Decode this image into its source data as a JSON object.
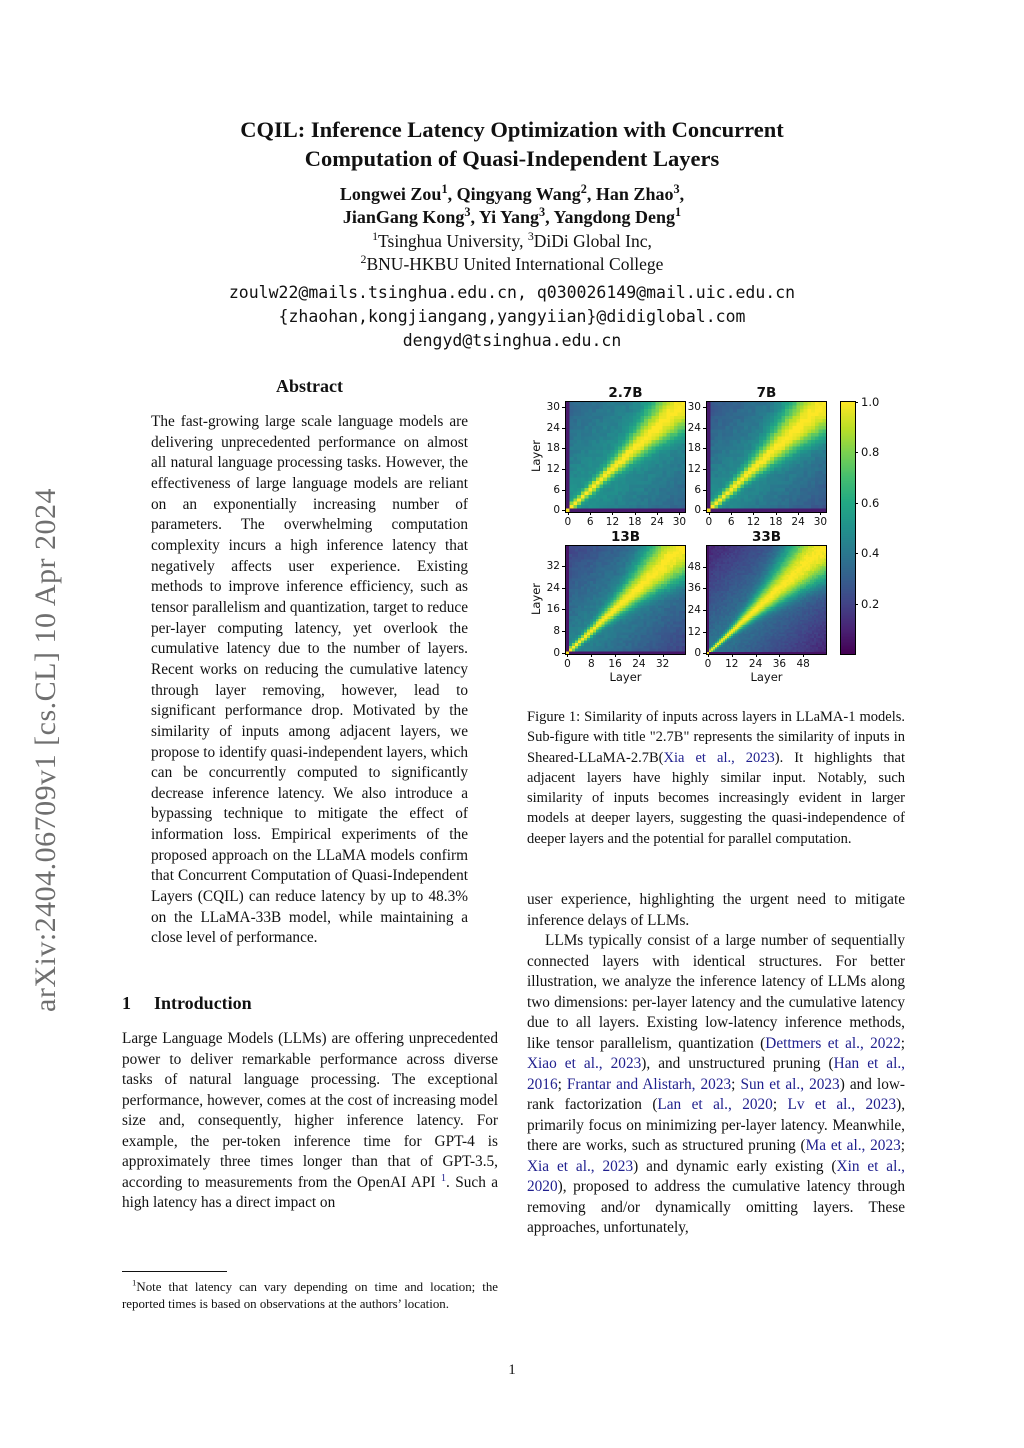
{
  "arxiv_banner": "arXiv:2404.06709v1  [cs.CL]  10 Apr 2024",
  "title": {
    "line1": "CQIL: Inference Latency Optimization with Concurrent",
    "line2": "Computation of Quasi-Independent Layers"
  },
  "authors": {
    "line1": [
      {
        "t": "Longwei Zou"
      },
      {
        "t": "1",
        "s": "sup"
      },
      {
        "t": ", Qingyang Wang"
      },
      {
        "t": "2",
        "s": "sup"
      },
      {
        "t": ", Han Zhao"
      },
      {
        "t": "3",
        "s": "sup"
      },
      {
        "t": ","
      }
    ],
    "line2": [
      {
        "t": "JianGang Kong"
      },
      {
        "t": "3",
        "s": "sup"
      },
      {
        "t": ", Yi Yang"
      },
      {
        "t": "3",
        "s": "sup"
      },
      {
        "t": ", Yangdong Deng"
      },
      {
        "t": "1",
        "s": "sup"
      }
    ]
  },
  "affiliations": {
    "line1": [
      {
        "t": "1",
        "s": "sup"
      },
      {
        "t": "Tsinghua University, "
      },
      {
        "t": "3",
        "s": "sup"
      },
      {
        "t": "DiDi Global Inc,"
      }
    ],
    "line2": [
      {
        "t": "2",
        "s": "sup"
      },
      {
        "t": "BNU-HKBU United International College"
      }
    ]
  },
  "emails": {
    "line1": "zoulw22@mails.tsinghua.edu.cn, q030026149@mail.uic.edu.cn",
    "line2": "{zhaohan,kongjiangang,yangyiian}@didiglobal.com",
    "line3": "dengyd@tsinghua.edu.cn"
  },
  "abstract": {
    "heading": "Abstract",
    "text": "The fast-growing large scale language models are delivering unprecedented performance on almost all natural language processing tasks. However, the effectiveness of large language models are reliant on an exponentially increasing number of parameters. The overwhelming computation complexity incurs a high inference latency that negatively affects user experience. Existing methods to improve inference efficiency, such as tensor parallelism and quantization, target to reduce per-layer computing latency, yet overlook the cumulative latency due to the number of layers. Recent works on reducing the cumulative latency through layer removing, however, lead to significant performance drop. Motivated by the similarity of inputs among adjacent layers, we propose to identify quasi-independent layers, which can be concurrently computed to significantly decrease inference latency. We also introduce a bypassing technique to mitigate the effect of information loss. Empirical experiments of the proposed approach on the LLaMA models confirm that Concurrent Computation of Quasi-Independent Layers (CQIL) can reduce latency by up to 48.3% on the LLaMA-33B model, while maintaining a close level of performance."
  },
  "introduction": {
    "number": "1",
    "heading": "Introduction",
    "paragraph": [
      {
        "t": "Large Language Models (LLMs) are offering unprecedented power to deliver remarkable performance across diverse tasks of natural language processing. The exceptional performance, however, comes at the cost of increasing model size and, consequently, higher inference latency. For example, the per-token inference time for GPT-4 is approximately three times longer than that of GPT-3.5, according to measurements from the OpenAI API "
      },
      {
        "t": "1",
        "s": "supcite"
      },
      {
        "t": ". Such a high latency has a direct impact on"
      }
    ]
  },
  "footnote": [
    {
      "t": "1",
      "s": "sup"
    },
    {
      "t": "Note that latency can vary depending on time and location; the reported times is based on observations at the authors’ location."
    }
  ],
  "figure_caption": [
    {
      "t": "Figure 1: Similarity of inputs across layers in LLaMA-1 models. Sub-figure with title \"2.7B\" represents the similarity of inputs in Sheared-LLaMA-2.7B("
    },
    {
      "t": "Xia et al., 2023",
      "s": "cite"
    },
    {
      "t": "). It highlights that adjacent layers have highly similar input. Notably, such similarity of inputs becomes increasingly evident in larger models at deeper layers, suggesting the quasi-independence of deeper layers and the potential for parallel computation."
    }
  ],
  "right_column": {
    "para1": "user experience, highlighting the urgent need to mitigate inference delays of LLMs.",
    "para2": [
      {
        "t": "LLMs typically consist of a large number of sequentially connected layers with identical structures. For better illustration, we analyze the inference latency of LLMs along two dimensions: per-layer latency and the cumulative latency due to all layers. Existing low-latency inference methods, like tensor parallelism, quantization ("
      },
      {
        "t": "Dettmers et al., 2022",
        "s": "cite"
      },
      {
        "t": "; "
      },
      {
        "t": "Xiao et al., 2023",
        "s": "cite"
      },
      {
        "t": "), and unstructured pruning ("
      },
      {
        "t": "Han et al., 2016",
        "s": "cite"
      },
      {
        "t": "; "
      },
      {
        "t": "Frantar and Alistarh, 2023",
        "s": "cite"
      },
      {
        "t": "; "
      },
      {
        "t": "Sun et al., 2023",
        "s": "cite"
      },
      {
        "t": ") and low-rank factorization ("
      },
      {
        "t": "Lan et al., 2020",
        "s": "cite"
      },
      {
        "t": "; "
      },
      {
        "t": "Lv et al., 2023",
        "s": "cite"
      },
      {
        "t": "), primarily focus on minimizing per-layer latency. Meanwhile, there are works, such as structured pruning ("
      },
      {
        "t": "Ma et al., 2023",
        "s": "cite"
      },
      {
        "t": "; "
      },
      {
        "t": "Xia et al., 2023",
        "s": "cite"
      },
      {
        "t": ") and dynamic early existing ("
      },
      {
        "t": "Xin et al., 2020",
        "s": "cite"
      },
      {
        "t": "), proposed to address the cumulative latency through removing and/or dynamically omitting layers. These approaches, unfortunately,"
      }
    ]
  },
  "page_number": "1",
  "link_color": "#20208e",
  "chart_data": {
    "type": "heatmap",
    "title": "Similarity of inputs across layers in LLaMA-1 models",
    "colormap": "viridis",
    "value_range": [
      0,
      1
    ],
    "diagonal_value": 1.0,
    "colorbar_ticks": [
      "1.0",
      "0.8",
      "0.6",
      "0.4",
      "0.2"
    ],
    "colorbar_tick_values": [
      1.0,
      0.8,
      0.6,
      0.4,
      0.2
    ],
    "legend_position": "right-colorbar",
    "subplots": [
      {
        "title": "2.7B",
        "n_layers": 32,
        "xticks": [
          0,
          6,
          12,
          18,
          24,
          30
        ],
        "yticks": [
          0,
          6,
          12,
          18,
          24,
          30
        ],
        "xlabel": "",
        "ylabel": "Layer",
        "pattern": {
          "bgA": 0.52,
          "bgB": 0.2,
          "sigK": 0.2,
          "sigP": 2.2,
          "edge": 0.07
        }
      },
      {
        "title": "7B",
        "n_layers": 32,
        "xticks": [
          0,
          6,
          12,
          18,
          24,
          30
        ],
        "yticks": [
          0,
          6,
          12,
          18,
          24,
          30
        ],
        "xlabel": "",
        "ylabel": "",
        "pattern": {
          "bgA": 0.5,
          "bgB": 0.24,
          "sigK": 0.23,
          "sigP": 2.0,
          "edge": 0.07
        }
      },
      {
        "title": "13B",
        "n_layers": 40,
        "xticks": [
          0,
          8,
          16,
          24,
          32
        ],
        "yticks": [
          0,
          8,
          16,
          24,
          32
        ],
        "xlabel": "Layer",
        "ylabel": "Layer",
        "pattern": {
          "bgA": 0.46,
          "bgB": 0.26,
          "sigK": 0.24,
          "sigP": 2.0,
          "edge": 0.06
        }
      },
      {
        "title": "33B",
        "n_layers": 60,
        "xticks": [
          0,
          12,
          24,
          36,
          48
        ],
        "yticks": [
          0,
          12,
          24,
          36,
          48
        ],
        "xlabel": "Layer",
        "ylabel": "",
        "pattern": {
          "bgA": 0.4,
          "bgB": 0.3,
          "sigK": 0.26,
          "sigP": 1.8,
          "edge": 0.05
        }
      }
    ],
    "pattern_description": "value 1.0 on diagonal; bright band widens toward deeper layers; layer-0 row and column near 0.05; background similarity decays with layer distance"
  }
}
